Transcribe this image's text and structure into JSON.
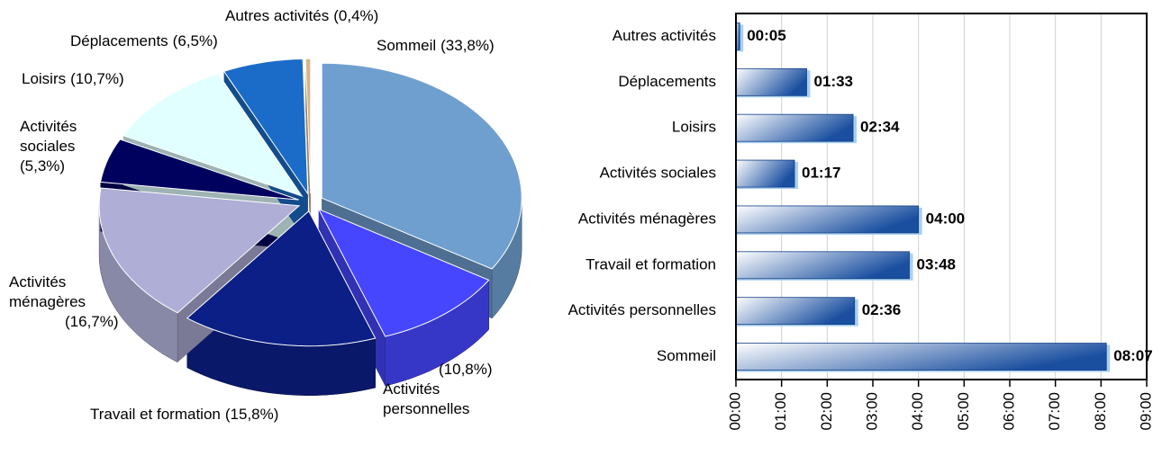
{
  "chart_data": [
    {
      "type": "pie",
      "categories": [
        "Sommeil",
        "Activités personnelles",
        "Travail et formation",
        "Activités ménagères",
        "Activités sociales",
        "Loisirs",
        "Déplacements",
        "Autres activités"
      ],
      "values": [
        33.8,
        10.8,
        15.8,
        16.7,
        5.3,
        10.7,
        6.5,
        0.4
      ],
      "value_labels": [
        "(33,8%)",
        "(10,8%)",
        "(15,8%)",
        "(16,7%)",
        "(5,3%)",
        "(10,7%)",
        "(6,5%)",
        "(0,4%)"
      ],
      "colors": [
        "#6f9fcf",
        "#4646ff",
        "#0b1f86",
        "#aeaed6",
        "#00005e",
        "#e2ffff",
        "#1a6cc8",
        "#d4b48e"
      ]
    },
    {
      "type": "hbar",
      "categories": [
        "Autres activités",
        "Déplacements",
        "Loisirs",
        "Activités sociales",
        "Activités ménagères",
        "Travail et formation",
        "Activités personnelles",
        "Sommeil"
      ],
      "values": [
        5,
        93,
        154,
        77,
        240,
        228,
        156,
        487
      ],
      "value_labels": [
        "00:05",
        "01:33",
        "02:34",
        "01:17",
        "04:00",
        "03:48",
        "02:36",
        "08:07"
      ],
      "color": "#1a4fa0",
      "xlim": [
        0,
        540
      ],
      "xticks": [
        {
          "value": 0,
          "label": "00:00"
        },
        {
          "value": 60,
          "label": "01:00"
        },
        {
          "value": 120,
          "label": "02:00"
        },
        {
          "value": 180,
          "label": "03:00"
        },
        {
          "value": 240,
          "label": "04:00"
        },
        {
          "value": 300,
          "label": "05:00"
        },
        {
          "value": 360,
          "label": "06:00"
        },
        {
          "value": 420,
          "label": "07:00"
        },
        {
          "value": 480,
          "label": "08:00"
        },
        {
          "value": 540,
          "label": "09:00"
        }
      ],
      "grid": true
    }
  ]
}
